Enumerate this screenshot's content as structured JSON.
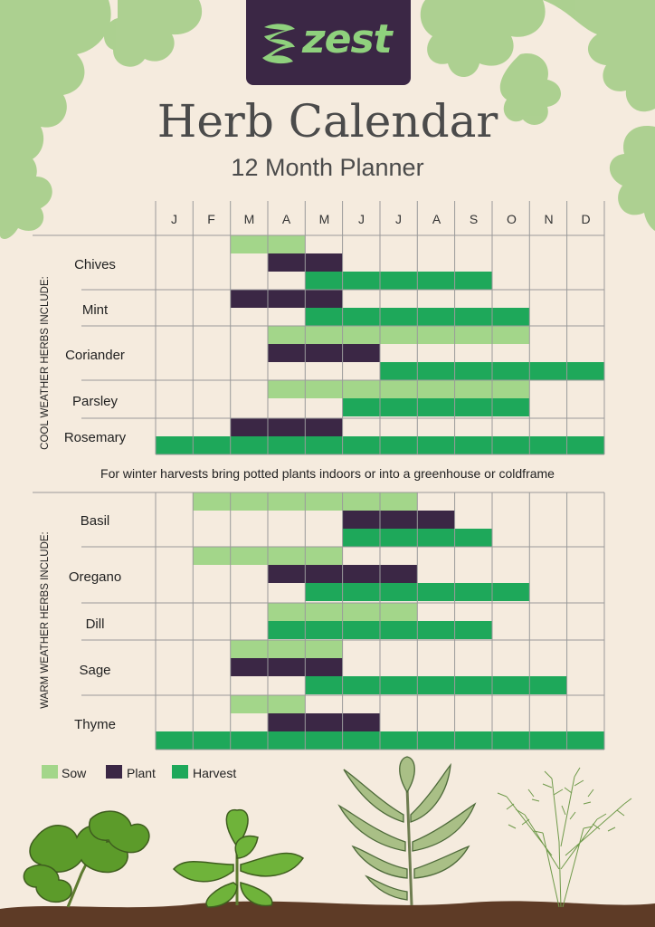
{
  "brand": {
    "name": "zest"
  },
  "title": "Herb Calendar",
  "subtitle": "12 Month Planner",
  "colors": {
    "sow": "#a3d68a",
    "plant": "#3b2745",
    "harvest": "#1ea85a",
    "grid": "#9a9a9a",
    "background": "#f5ebde",
    "text": "#4b4b4b"
  },
  "chart_data": {
    "type": "table",
    "months": [
      "J",
      "F",
      "M",
      "A",
      "M",
      "J",
      "J",
      "A",
      "S",
      "O",
      "N",
      "D"
    ],
    "legend": [
      "Sow",
      "Plant",
      "Harvest"
    ],
    "note": "For winter harvests bring potted plants indoors or into a greenhouse or coldframe",
    "groups": [
      {
        "label": "COOL WEATHER HERBS INCLUDE:",
        "herbs": [
          {
            "name": "Chives",
            "sow": [
              3,
              4
            ],
            "plant": [
              4,
              5
            ],
            "harvest": [
              5,
              6,
              7,
              8,
              9
            ]
          },
          {
            "name": "Mint",
            "sow": [],
            "plant": [
              3,
              4,
              5
            ],
            "harvest": [
              5,
              6,
              7,
              8,
              9,
              10
            ]
          },
          {
            "name": "Coriander",
            "sow": [
              4,
              5,
              6,
              7,
              8,
              9,
              10
            ],
            "plant": [
              4,
              5,
              6
            ],
            "harvest": [
              7,
              8,
              9,
              10,
              11,
              12
            ]
          },
          {
            "name": "Parsley",
            "sow": [
              4,
              5,
              6,
              7,
              8,
              9,
              10
            ],
            "plant": [],
            "harvest": [
              6,
              7,
              8,
              9,
              10
            ]
          },
          {
            "name": "Rosemary",
            "sow": [],
            "plant": [
              3,
              4,
              5
            ],
            "harvest": [
              1,
              2,
              3,
              4,
              5,
              6,
              7,
              8,
              9,
              10,
              11,
              12
            ]
          }
        ]
      },
      {
        "label": "WARM WEATHER HERBS INCLUDE:",
        "herbs": [
          {
            "name": "Basil",
            "sow": [
              2,
              3,
              4,
              5,
              6,
              7
            ],
            "plant": [
              6,
              7,
              8
            ],
            "harvest": [
              6,
              7,
              8,
              9
            ]
          },
          {
            "name": "Oregano",
            "sow": [
              2,
              3,
              4,
              5
            ],
            "plant": [
              4,
              5,
              6,
              7
            ],
            "harvest": [
              5,
              6,
              7,
              8,
              9,
              10
            ]
          },
          {
            "name": "Dill",
            "sow": [
              4,
              5,
              6,
              7
            ],
            "plant": [],
            "harvest": [
              4,
              5,
              6,
              7,
              8,
              9
            ]
          },
          {
            "name": "Sage",
            "sow": [
              3,
              4,
              5
            ],
            "plant": [
              3,
              4,
              5
            ],
            "harvest": [
              5,
              6,
              7,
              8,
              9,
              10,
              11
            ]
          },
          {
            "name": "Thyme",
            "sow": [
              3,
              4
            ],
            "plant": [
              4,
              5,
              6
            ],
            "harvest": [
              1,
              2,
              3,
              4,
              5,
              6,
              7,
              8,
              9,
              10,
              11,
              12
            ]
          }
        ]
      }
    ]
  }
}
